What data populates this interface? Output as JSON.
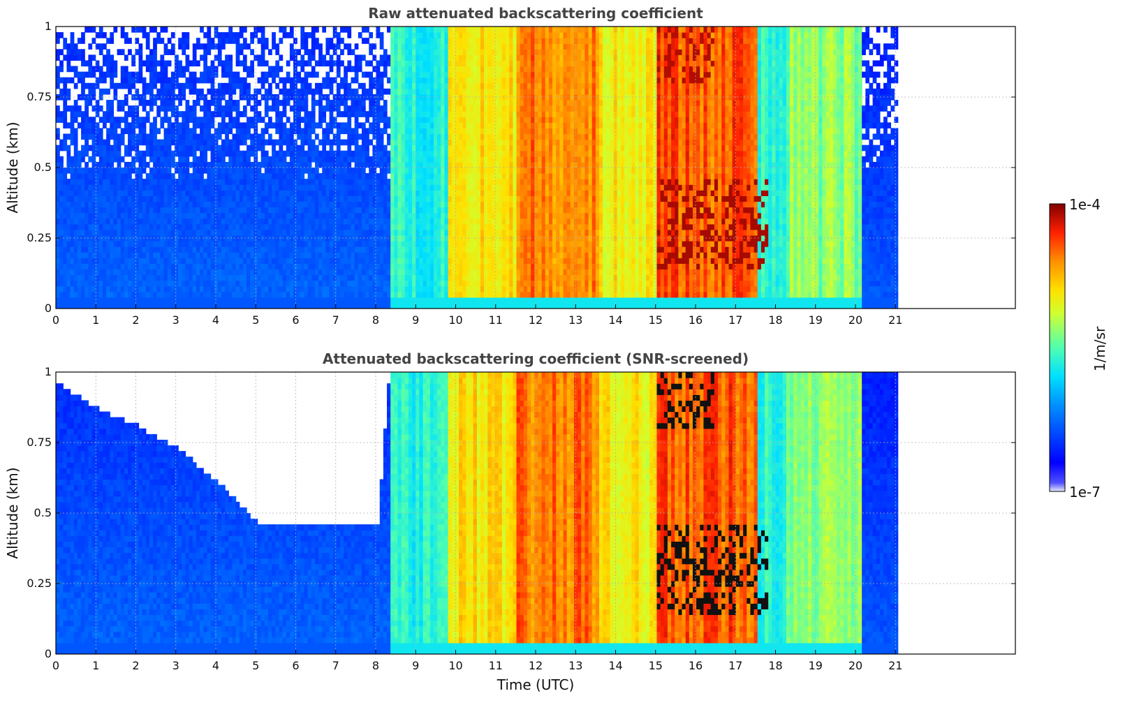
{
  "chart_data": [
    {
      "type": "heatmap",
      "title": "Raw attenuated backscattering coefficient",
      "xlabel": "",
      "ylabel": "Altitude (km)",
      "xlim": [
        0,
        24
      ],
      "ylim": [
        0,
        1
      ],
      "x_ticks": [
        "0",
        "1",
        "2",
        "3",
        "4",
        "5",
        "6",
        "7",
        "8",
        "9",
        "10",
        "11",
        "12",
        "13",
        "14",
        "15",
        "16",
        "17",
        "18",
        "19",
        "20",
        "21"
      ],
      "y_ticks": [
        {
          "value": 0,
          "label": "0"
        },
        {
          "value": 0.25,
          "label": "0.25"
        },
        {
          "value": 0.5,
          "label": "0.5"
        },
        {
          "value": 0.75,
          "label": "0.75"
        },
        {
          "value": 1,
          "label": "1"
        }
      ],
      "grid": true,
      "data_end_hour": 21,
      "screened": false,
      "profile_segments": [
        {
          "x": [
            0,
            8.3
          ],
          "level": 0.12,
          "description_level": "low"
        },
        {
          "x": [
            8.3,
            9.8
          ],
          "level": 0.45
        },
        {
          "x": [
            9.8,
            11.5
          ],
          "level": 0.7
        },
        {
          "x": [
            11.5,
            13.5
          ],
          "level": 0.82
        },
        {
          "x": [
            13.5,
            15
          ],
          "level": 0.68
        },
        {
          "x": [
            15,
            17.5
          ],
          "level": 0.85
        },
        {
          "x": [
            17.5,
            18.2
          ],
          "level": 0.45
        },
        {
          "x": [
            18.2,
            20.1
          ],
          "level": 0.55
        },
        {
          "x": [
            20.1,
            21
          ],
          "level": 0.1
        }
      ]
    },
    {
      "type": "heatmap",
      "title": "Attenuated backscattering coefficient (SNR-screened)",
      "xlabel": "Time (UTC)",
      "ylabel": "Altitude (km)",
      "xlim": [
        0,
        24
      ],
      "ylim": [
        0,
        1
      ],
      "x_ticks": [
        "0",
        "1",
        "2",
        "3",
        "4",
        "5",
        "6",
        "7",
        "8",
        "9",
        "10",
        "11",
        "12",
        "13",
        "14",
        "15",
        "16",
        "17",
        "18",
        "19",
        "20",
        "21"
      ],
      "y_ticks": [
        {
          "value": 0,
          "label": "0"
        },
        {
          "value": 0.25,
          "label": "0.25"
        },
        {
          "value": 0.5,
          "label": "0.5"
        },
        {
          "value": 0.75,
          "label": "0.75"
        },
        {
          "value": 1,
          "label": "1"
        }
      ],
      "grid": true,
      "data_end_hour": 21,
      "screened": true,
      "screen_boundary": [
        {
          "x": 0,
          "y": 0.97
        },
        {
          "x": 1,
          "y": 0.88
        },
        {
          "x": 2,
          "y": 0.82
        },
        {
          "x": 3,
          "y": 0.74
        },
        {
          "x": 4,
          "y": 0.62
        },
        {
          "x": 5,
          "y": 0.48
        },
        {
          "x": 6,
          "y": 0.46
        },
        {
          "x": 7,
          "y": 0.47
        },
        {
          "x": 8,
          "y": 0.46
        },
        {
          "x": 8.3,
          "y": 1.0
        }
      ]
    }
  ],
  "colorbar": {
    "label": "1/m/sr",
    "max_label": "1e-4",
    "min_label": "1e-7",
    "scale": "log",
    "colormap": "jet"
  }
}
